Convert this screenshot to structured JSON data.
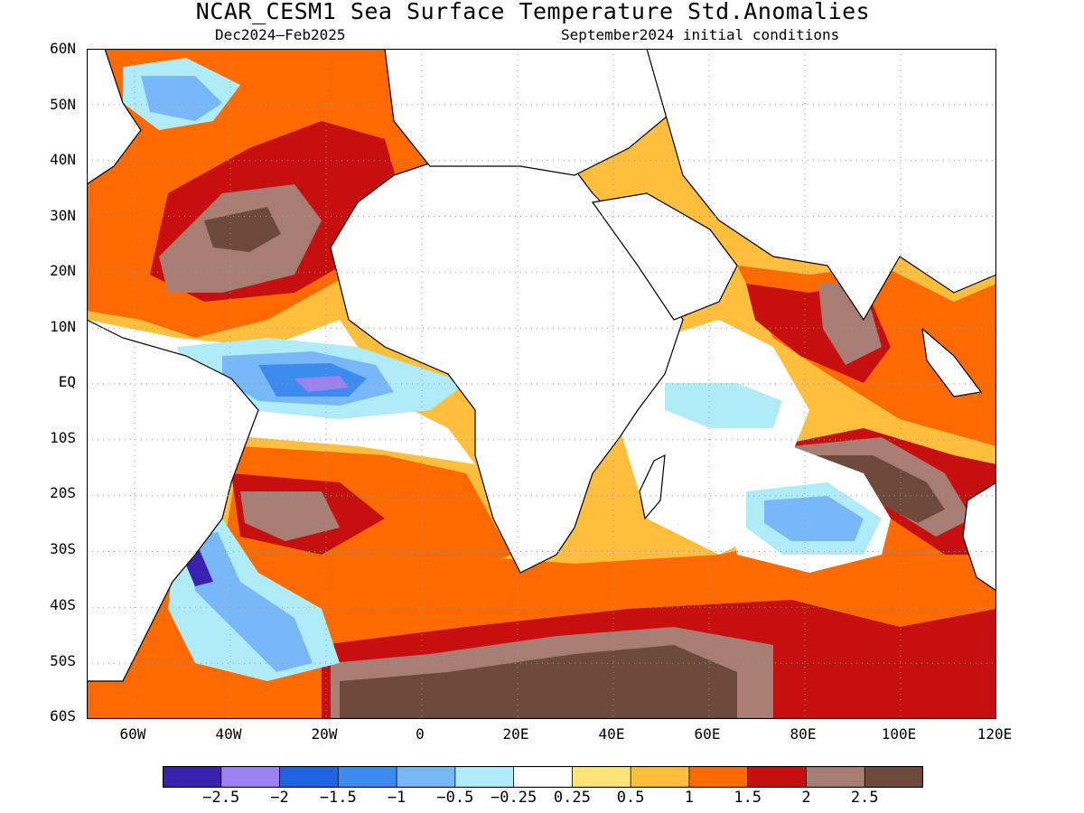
{
  "title": "NCAR_CESM1 Sea Surface Temperature Std.Anomalies",
  "period": "Dec2024–Feb2025",
  "init": "September2024 initial conditions",
  "lat_labels": [
    "60N",
    "50N",
    "40N",
    "30N",
    "20N",
    "10N",
    "EQ",
    "10S",
    "20S",
    "30S",
    "40S",
    "50S",
    "60S"
  ],
  "lon_labels": [
    "60W",
    "40W",
    "20W",
    "0",
    "20E",
    "40E",
    "60E",
    "80E",
    "100E",
    "120E"
  ],
  "colorbar": {
    "colors": [
      "#3a22b0",
      "#9b82f0",
      "#1f63e0",
      "#3c8cf0",
      "#78b8f8",
      "#b0ecf8",
      "#ffffff",
      "#ffe47a",
      "#ffbe3c",
      "#ff6a00",
      "#c80f0f",
      "#a87e74",
      "#6e4a3c"
    ],
    "labels": [
      "−2.5",
      "−2",
      "−1.5",
      "−1",
      "−0.5",
      "−0.25",
      "0.25",
      "0.5",
      "1",
      "1.5",
      "2",
      "2.5"
    ]
  },
  "map": {
    "lon_range": [
      "70W",
      "120E"
    ],
    "lat_range": [
      "60S",
      "60N"
    ],
    "grid": "dotted",
    "land_fill": "white"
  }
}
